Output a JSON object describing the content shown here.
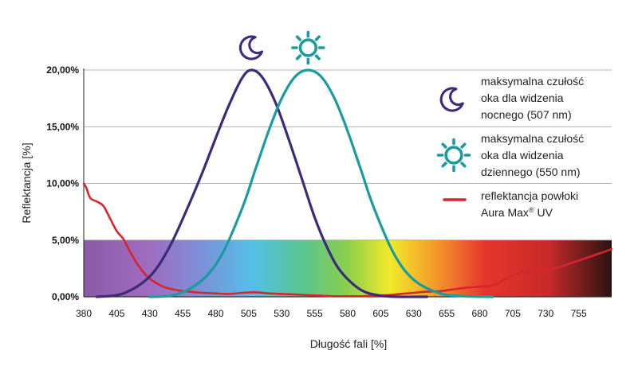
{
  "chart_data": {
    "type": "line",
    "xlabel": "Długość fali [%]",
    "ylabel": "Reflektancja [%]",
    "xlim": [
      380,
      780
    ],
    "ylim": [
      0,
      20
    ],
    "x_ticks": [
      380,
      405,
      430,
      455,
      480,
      505,
      530,
      555,
      580,
      605,
      630,
      655,
      680,
      705,
      730,
      755
    ],
    "x_tick_labels": [
      "380",
      "405",
      "430",
      "455",
      "480",
      "505",
      "530",
      "555",
      "580",
      "605",
      "630",
      "655",
      "680",
      "705",
      "730",
      "755"
    ],
    "y_ticks": [
      0,
      5,
      10,
      15,
      20
    ],
    "y_tick_labels": [
      "0,00%",
      "5,00%",
      "10,00%",
      "15,00%",
      "20,00%"
    ],
    "grid": "horizontal",
    "spectrum_band": {
      "y_top": 5
    },
    "legend_position": "right",
    "series": [
      {
        "key": "night",
        "legend_lines": [
          "maksymalna czułość",
          "oka dla widzenia",
          "nocnego (507 nm)"
        ],
        "color": "#3d2b7a",
        "icon": "moon-icon",
        "peak": 507,
        "x": [
          390,
          410,
          430,
          445,
          460,
          470,
          480,
          490,
          500,
          507,
          515,
          525,
          535,
          545,
          555,
          565,
          575,
          590,
          605,
          620,
          640
        ],
        "y": [
          0.0,
          0.3,
          1.8,
          4.4,
          8.2,
          11.0,
          14.0,
          16.9,
          19.3,
          20.0,
          19.4,
          17.2,
          14.0,
          10.5,
          7.0,
          4.2,
          2.2,
          0.6,
          0.1,
          0.0,
          0.0
        ]
      },
      {
        "key": "day",
        "legend_lines": [
          "maksymalna czułość",
          "oka dla widzenia",
          "dziennego (550 nm)"
        ],
        "color": "#1a9ba0",
        "icon": "sun-icon",
        "peak": 550,
        "x": [
          430,
          450,
          470,
          485,
          500,
          510,
          520,
          530,
          540,
          550,
          560,
          570,
          580,
          590,
          600,
          615,
          630,
          650,
          670,
          690
        ],
        "y": [
          0.0,
          0.2,
          1.5,
          3.8,
          7.8,
          11.2,
          14.6,
          17.5,
          19.4,
          20.0,
          19.4,
          17.5,
          14.6,
          11.2,
          7.8,
          3.8,
          1.5,
          0.3,
          0.05,
          0.0
        ]
      },
      {
        "key": "coating",
        "legend_lines": [
          "reflektancja powłoki",
          "Aura Max"
        ],
        "legend_sup": "®",
        "legend_suffix": " UV",
        "color": "#d7262b",
        "x": [
          380,
          382,
          385,
          390,
          395,
          400,
          405,
          410,
          415,
          420,
          425,
          430,
          440,
          450,
          460,
          470,
          480,
          490,
          500,
          510,
          520,
          530,
          540,
          550,
          560,
          570,
          580,
          590,
          600,
          610,
          620,
          630,
          640,
          650,
          660,
          670,
          680,
          690,
          700,
          710,
          720,
          730,
          740,
          750,
          760,
          770,
          780
        ],
        "y": [
          10.0,
          9.6,
          8.7,
          8.4,
          8.0,
          6.9,
          5.8,
          5.1,
          4.0,
          3.0,
          2.2,
          1.6,
          0.9,
          0.6,
          0.45,
          0.35,
          0.3,
          0.25,
          0.35,
          0.4,
          0.3,
          0.25,
          0.2,
          0.15,
          0.1,
          0.05,
          0.05,
          0.05,
          0.1,
          0.15,
          0.25,
          0.35,
          0.45,
          0.5,
          0.65,
          0.8,
          0.9,
          1.0,
          1.6,
          2.1,
          2.3,
          2.4,
          2.6,
          3.0,
          3.4,
          3.8,
          4.2
        ]
      }
    ]
  }
}
